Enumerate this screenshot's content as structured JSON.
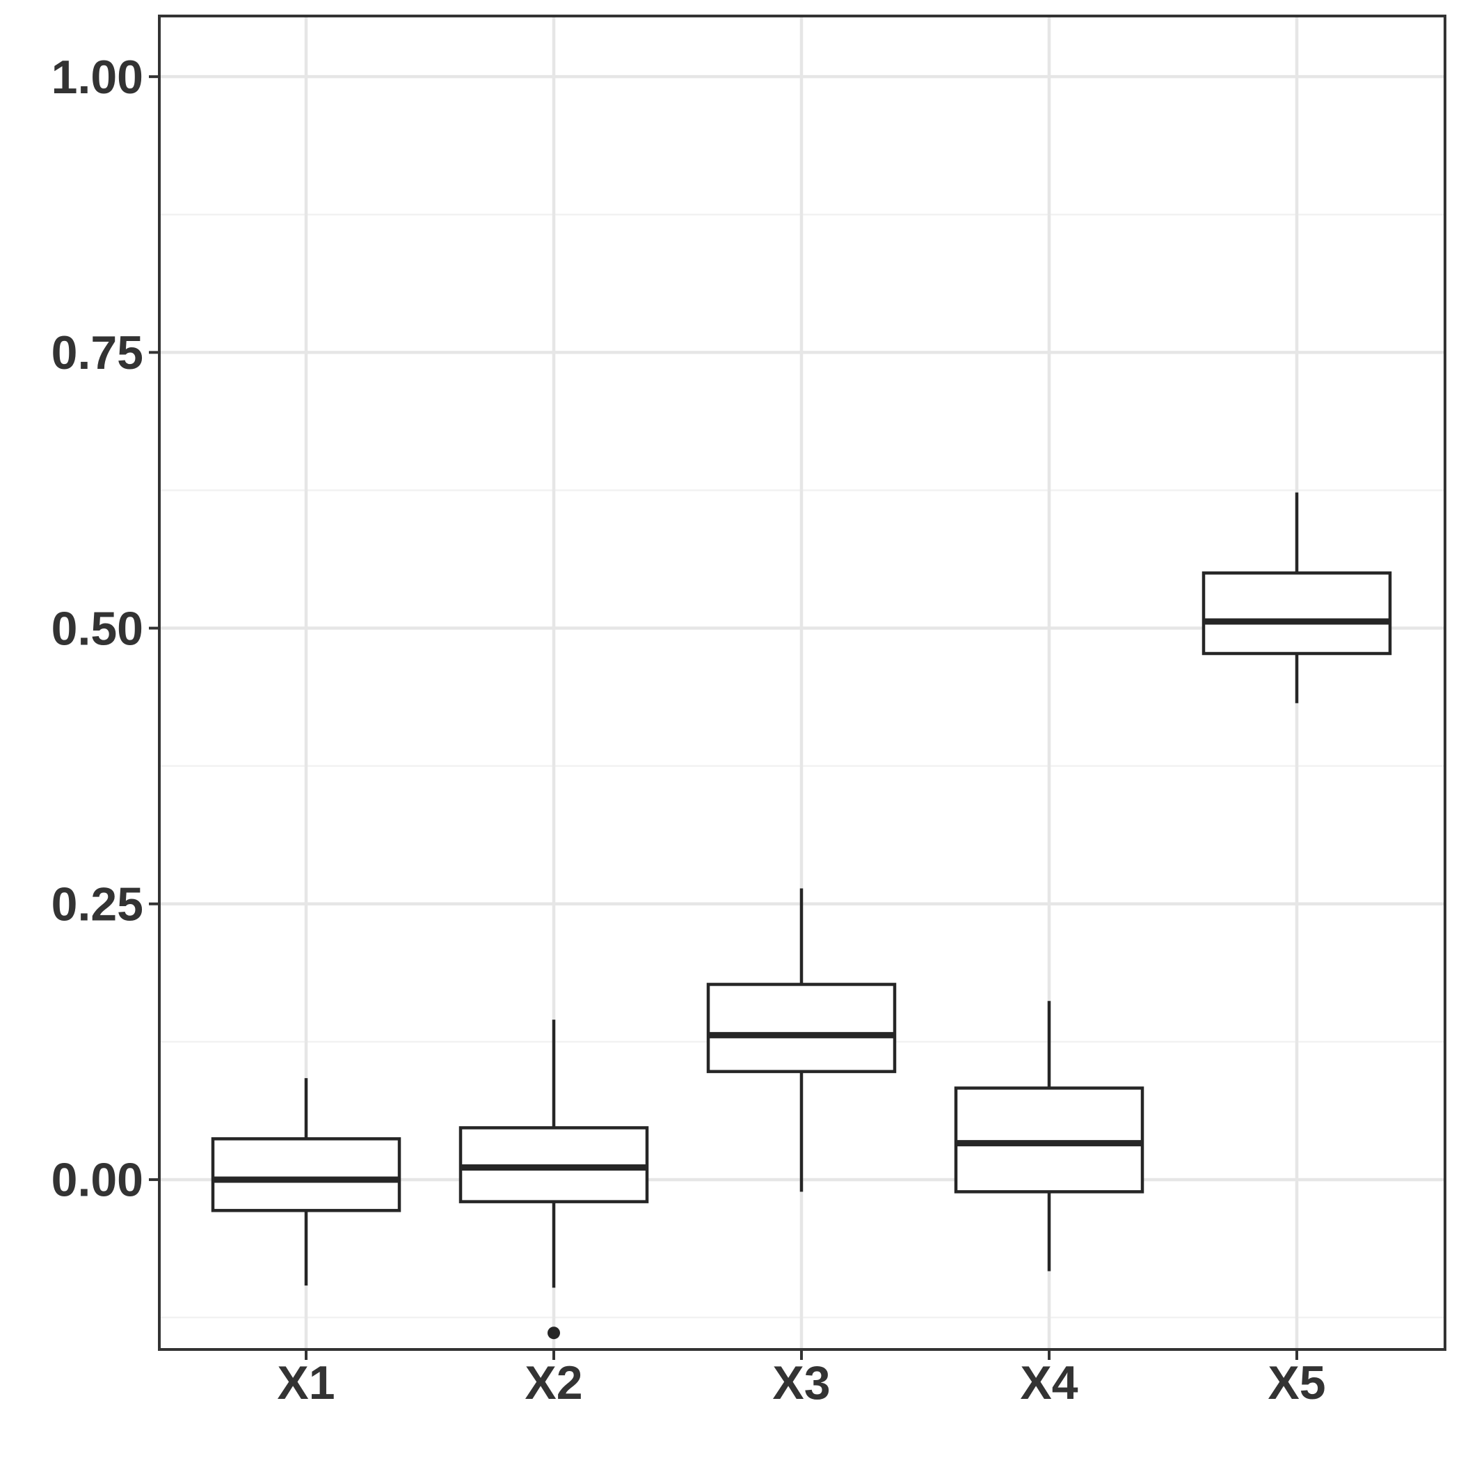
{
  "figure": {
    "title": "",
    "description": "Boxplot of five variables X1-X5 on a 0-1 scale"
  },
  "chart_data": {
    "type": "boxplot",
    "title": "",
    "xlabel": "",
    "ylabel": "",
    "categories": [
      "X1",
      "X2",
      "X3",
      "X4",
      "X5"
    ],
    "series": [
      {
        "name": "X1",
        "whisker_low": -0.096,
        "q1": -0.028,
        "median": 0.0,
        "q3": 0.037,
        "whisker_high": 0.092,
        "outliers": []
      },
      {
        "name": "X2",
        "whisker_low": -0.098,
        "q1": -0.02,
        "median": 0.011,
        "q3": 0.047,
        "whisker_high": 0.145,
        "outliers": [
          -0.139
        ]
      },
      {
        "name": "X3",
        "whisker_low": -0.011,
        "q1": 0.098,
        "median": 0.131,
        "q3": 0.177,
        "whisker_high": 0.264,
        "outliers": []
      },
      {
        "name": "X4",
        "whisker_low": -0.083,
        "q1": -0.011,
        "median": 0.033,
        "q3": 0.083,
        "whisker_high": 0.162,
        "outliers": []
      },
      {
        "name": "X5",
        "whisker_low": 0.432,
        "q1": 0.477,
        "median": 0.506,
        "q3": 0.55,
        "whisker_high": 0.623,
        "outliers": []
      }
    ],
    "y_axis": {
      "ticks": [
        0.0,
        0.25,
        0.5,
        0.75,
        1.0
      ],
      "tick_labels": [
        "0.00",
        "0.25",
        "0.50",
        "0.75",
        "1.00"
      ],
      "range": [
        -0.154,
        1.055
      ],
      "minor_gridlines": [
        -0.125,
        0.125,
        0.375,
        0.625,
        0.875
      ]
    },
    "x_axis": {
      "tick_labels": [
        "X1",
        "X2",
        "X3",
        "X4",
        "X5"
      ]
    },
    "grid": true,
    "legend": false,
    "style": {
      "background": "#ffffff",
      "panel_border": "#333333",
      "grid_major": "#e6e6e6",
      "grid_minor": "#f2f2f2",
      "box_stroke": "#262626",
      "box_fill": "#ffffff",
      "median_stroke": "#262626",
      "outlier_fill": "#262626",
      "axis_text": "#333333",
      "tick_color": "#333333"
    }
  }
}
